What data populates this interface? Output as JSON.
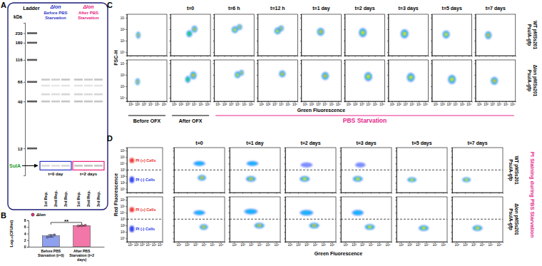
{
  "chart_data": [
    {
      "type": "gel",
      "panel": "A",
      "ladder_title": "Ladder",
      "unit": "kDa",
      "log": "y",
      "ylim": [
        6,
        300
      ],
      "yticks": [
        230,
        180,
        116,
        66,
        40,
        12
      ],
      "ladder": [
        230,
        180,
        116,
        66,
        40,
        12
      ],
      "bands": [
        70,
        60,
        48,
        40,
        7.7
      ],
      "target": {
        "label": "SulA",
        "value": 7.7,
        "color": "#1f9e2c"
      },
      "groups": [
        {
          "strain": "Δlon",
          "title": "Before PBS Starvation",
          "time": "t=0 day",
          "color": "#2b35c8",
          "lanes": [
            {
              "label": "1st Rep.",
              "intensity": [
                0.28,
                0.15,
                0.2,
                0.3,
                0.2
              ]
            },
            {
              "label": "2nd Rep.",
              "intensity": [
                0.25,
                0.12,
                0.18,
                0.28,
                0.18
              ]
            },
            {
              "label": "3rd Rep.",
              "intensity": [
                0.3,
                0.15,
                0.22,
                0.3,
                0.22
              ]
            }
          ]
        },
        {
          "strain": "Δlon",
          "title": "After PBS Starvation",
          "time": "t=2 days",
          "color": "#e8207f",
          "lanes": [
            {
              "label": "1st Rep.",
              "intensity": [
                0.3,
                0.15,
                0.22,
                0.32,
                0.3
              ]
            },
            {
              "label": "2nd Rep.",
              "intensity": [
                0.28,
                0.14,
                0.2,
                0.3,
                0.32
              ]
            },
            {
              "label": "3rd Rep.",
              "intensity": [
                0.3,
                0.15,
                0.22,
                0.3,
                0.3
              ]
            }
          ]
        }
      ]
    },
    {
      "type": "bar",
      "panel": "B",
      "categories": [
        "Before PBS Starvation (t=0)",
        "After PBS Starvation (t=2 days)"
      ],
      "series": [
        {
          "name": "Δlon",
          "color": "#e0307a",
          "values": [
            3.3,
            6.4
          ],
          "errors": [
            0.35,
            0.1
          ],
          "points": [
            [
              2.9,
              3.4,
              3.6
            ],
            [
              6.3,
              6.4,
              6.5
            ]
          ]
        }
      ],
      "colors": [
        "#8fa0ee",
        "#f277a8"
      ],
      "ylabel": "Log₁₀(CFU/ml)",
      "ylim": [
        0,
        8
      ],
      "yticks": [
        0,
        2,
        4,
        6,
        8
      ],
      "significance": "**",
      "legend": "upper left"
    },
    {
      "type": "density_grid",
      "panel": "C",
      "log": true,
      "y_title": "FSC-H",
      "x_title": "Green Fluorescence",
      "xlim": [
        3,
        3000000
      ],
      "ylim": [
        5000,
        20000000
      ],
      "xticks": [
        {
          "value": 10,
          "label": "10¹"
        },
        {
          "value": 100,
          "label": "10²"
        },
        {
          "value": 1000,
          "label": "10³"
        },
        {
          "value": 10000,
          "label": "10⁴"
        },
        {
          "value": 100000,
          "label": "10⁵"
        },
        {
          "value": 1000000,
          "label": "10⁶"
        }
      ],
      "yticks": [
        {
          "value": 10000,
          "label": "10⁴"
        },
        {
          "value": 100000,
          "label": "10⁵"
        },
        {
          "value": 1000000,
          "label": "10⁶"
        },
        {
          "value": 10000000,
          "label": "10⁷"
        }
      ],
      "columns": [
        null,
        "t=0",
        "t=6 h",
        "t=12 h",
        "t=1 day",
        "t=2 days",
        "t=3 days",
        "t=5 days",
        "t=7 days"
      ],
      "column_groups": [
        {
          "label": "Before OFX",
          "columns": 1,
          "color": "#000000"
        },
        {
          "label": "After OFX",
          "columns": 1,
          "color": "#000000"
        },
        {
          "label": "PBS Starvation",
          "columns": 7,
          "color": "#e4268a"
        }
      ],
      "rows": [
        {
          "label": "WT pMSs201 PsulA-gfp",
          "plots": [
            {
              "clusters": [
                {
                  "x": 150,
                  "y": 300000,
                  "sx": 0.35,
                  "sy": 0.3,
                  "level": 5
                }
              ]
            },
            {
              "clusters": [
                {
                  "x": 12000,
                  "y": 1000000,
                  "sx": 0.45,
                  "sy": 0.3,
                  "level": 5
                },
                {
                  "x": 2000,
                  "y": 400000,
                  "sx": 0.45,
                  "sy": 0.3,
                  "level": 3
                }
              ]
            },
            {
              "clusters": [
                {
                  "x": 4000,
                  "y": 900000,
                  "sx": 0.5,
                  "sy": 0.3,
                  "level": 4
                },
                {
                  "x": 20000,
                  "y": 1500000,
                  "sx": 0.4,
                  "sy": 0.25,
                  "level": 5
                }
              ]
            },
            {
              "clusters": [
                {
                  "x": 3000,
                  "y": 700000,
                  "sx": 0.5,
                  "sy": 0.3,
                  "level": 4
                },
                {
                  "x": 10000,
                  "y": 1200000,
                  "sx": 0.4,
                  "sy": 0.25,
                  "level": 5
                }
              ]
            },
            {
              "clusters": [
                {
                  "x": 2500,
                  "y": 600000,
                  "sx": 0.55,
                  "sy": 0.35,
                  "level": 5
                }
              ]
            },
            {
              "clusters": [
                {
                  "x": 1500,
                  "y": 500000,
                  "sx": 0.6,
                  "sy": 0.4,
                  "level": 4
                }
              ]
            },
            {
              "clusters": [
                {
                  "x": 800,
                  "y": 400000,
                  "sx": 0.6,
                  "sy": 0.4,
                  "level": 4
                }
              ]
            },
            {
              "clusters": [
                {
                  "x": 400,
                  "y": 350000,
                  "sx": 0.55,
                  "sy": 0.35,
                  "level": 4
                }
              ]
            },
            {
              "clusters": [
                {
                  "x": 250,
                  "y": 300000,
                  "sx": 0.5,
                  "sy": 0.35,
                  "level": 5
                }
              ]
            }
          ]
        },
        {
          "label": "Δlon pMSs201 PsulA-gfp",
          "plots": [
            {
              "clusters": [
                {
                  "x": 120,
                  "y": 250000,
                  "sx": 0.35,
                  "sy": 0.3,
                  "level": 5
                }
              ]
            },
            {
              "clusters": [
                {
                  "x": 8000,
                  "y": 900000,
                  "sx": 0.5,
                  "sy": 0.35,
                  "level": 5
                },
                {
                  "x": 1200,
                  "y": 400000,
                  "sx": 0.4,
                  "sy": 0.3,
                  "level": 3
                }
              ]
            },
            {
              "clusters": [
                {
                  "x": 10000,
                  "y": 1000000,
                  "sx": 0.45,
                  "sy": 0.3,
                  "level": 4
                },
                {
                  "x": 40000,
                  "y": 1500000,
                  "sx": 0.35,
                  "sy": 0.25,
                  "level": 5
                }
              ]
            },
            {
              "clusters": [
                {
                  "x": 15000,
                  "y": 1200000,
                  "sx": 0.5,
                  "sy": 0.3,
                  "level": 5
                }
              ]
            },
            {
              "clusters": [
                {
                  "x": 12000,
                  "y": 800000,
                  "sx": 0.55,
                  "sy": 0.35,
                  "level": 5
                }
              ]
            },
            {
              "clusters": [
                {
                  "x": 10000,
                  "y": 700000,
                  "sx": 0.6,
                  "sy": 0.4,
                  "level": 4
                }
              ]
            },
            {
              "clusters": [
                {
                  "x": 7000,
                  "y": 600000,
                  "sx": 0.6,
                  "sy": 0.4,
                  "level": 4
                }
              ]
            },
            {
              "clusters": [
                {
                  "x": 3000,
                  "y": 400000,
                  "sx": 0.6,
                  "sy": 0.4,
                  "level": 4
                }
              ]
            },
            {
              "clusters": [
                {
                  "x": 2000,
                  "y": 300000,
                  "sx": 0.55,
                  "sy": 0.35,
                  "level": 5
                }
              ]
            }
          ]
        }
      ]
    },
    {
      "type": "density_grid",
      "panel": "D",
      "log": true,
      "y_title": "Red Fluorescence",
      "x_title": "Green Fluorescence",
      "side_title": "PI Staining during PBS Starvation",
      "color": "#e4268a",
      "threshold": 1000,
      "xlim": [
        3,
        3000000
      ],
      "ylim": [
        0.3,
        3000000
      ],
      "xticks": [
        {
          "value": 10,
          "label": "10¹"
        },
        {
          "value": 100,
          "label": "10²"
        },
        {
          "value": 1000,
          "label": "10³"
        },
        {
          "value": 10000,
          "label": "10⁴"
        },
        {
          "value": 100000,
          "label": "10⁵"
        },
        {
          "value": 1000000,
          "label": "10⁶"
        }
      ],
      "yticks": [
        {
          "value": 1,
          "label": "10⁰"
        },
        {
          "value": 10,
          "label": "10¹"
        },
        {
          "value": 100,
          "label": "10²"
        },
        {
          "value": 1000,
          "label": "10³"
        },
        {
          "value": 10000,
          "label": "10⁴"
        },
        {
          "value": 100000,
          "label": "10⁵"
        },
        {
          "value": 1000000,
          "label": "10⁶"
        }
      ],
      "columns": [
        "t=0",
        "t=1 day",
        "t=2 days",
        "t=3 days",
        "t=5 days",
        "t=7 days"
      ],
      "rows": [
        {
          "label": "WT pMSs201 PsulA-gfp",
          "reference": {
            "clusters": [
              {
                "x": 20,
                "y": 30000,
                "sx": 0.4,
                "sy": 0.4,
                "level": 1,
                "color": "#ee2222",
                "label": "PI (+) Cells"
              },
              {
                "x": 20,
                "y": 30,
                "sx": 0.4,
                "sy": 0.5,
                "level": 1,
                "color": "#2233ee",
                "label": "PI (-) Cells"
              }
            ]
          },
          "plots": [
            {
              "clusters": [
                {
                  "x": 6000,
                  "y": 60,
                  "sx": 0.5,
                  "sy": 0.45,
                  "level": 5
                },
                {
                  "x": 3000,
                  "y": 10000,
                  "sx": 0.7,
                  "sy": 0.4,
                  "level": 2
                }
              ]
            },
            {
              "clusters": [
                {
                  "x": 1000,
                  "y": 40,
                  "sx": 0.6,
                  "sy": 0.45,
                  "level": 5
                },
                {
                  "x": 1500,
                  "y": 10000,
                  "sx": 0.7,
                  "sy": 0.4,
                  "level": 2
                }
              ]
            },
            {
              "clusters": [
                {
                  "x": 600,
                  "y": 40,
                  "sx": 0.6,
                  "sy": 0.45,
                  "level": 4
                },
                {
                  "x": 1000,
                  "y": 6000,
                  "sx": 0.7,
                  "sy": 0.4,
                  "level": 1
                }
              ]
            },
            {
              "clusters": [
                {
                  "x": 300,
                  "y": 40,
                  "sx": 0.6,
                  "sy": 0.45,
                  "level": 4
                },
                {
                  "x": 600,
                  "y": 6000,
                  "sx": 0.6,
                  "sy": 0.4,
                  "level": 1
                }
              ]
            },
            {
              "clusters": [
                {
                  "x": 200,
                  "y": 30,
                  "sx": 0.55,
                  "sy": 0.4,
                  "level": 4
                }
              ]
            },
            {
              "clusters": [
                {
                  "x": 150,
                  "y": 30,
                  "sx": 0.5,
                  "sy": 0.4,
                  "level": 4
                }
              ]
            }
          ]
        },
        {
          "label": "Δlon pMSs201 PsulA-gfp",
          "reference": {
            "clusters": [
              {
                "x": 20,
                "y": 30000,
                "sx": 0.4,
                "sy": 0.4,
                "level": 1,
                "color": "#ee2222",
                "label": "PI (+) Cells"
              },
              {
                "x": 20,
                "y": 30,
                "sx": 0.4,
                "sy": 0.5,
                "level": 1,
                "color": "#2233ee",
                "label": "PI (-) Cells"
              }
            ]
          },
          "plots": [
            {
              "clusters": [
                {
                  "x": 10000,
                  "y": 60,
                  "sx": 0.5,
                  "sy": 0.45,
                  "level": 5
                },
                {
                  "x": 3000,
                  "y": 10000,
                  "sx": 0.7,
                  "sy": 0.4,
                  "level": 2
                }
              ]
            },
            {
              "clusters": [
                {
                  "x": 10000,
                  "y": 100,
                  "sx": 0.6,
                  "sy": 0.45,
                  "level": 5
                },
                {
                  "x": 1000,
                  "y": 15000,
                  "sx": 0.8,
                  "sy": 0.45,
                  "level": 2
                }
              ]
            },
            {
              "clusters": [
                {
                  "x": 8000,
                  "y": 100,
                  "sx": 0.6,
                  "sy": 0.45,
                  "level": 5
                },
                {
                  "x": 1000,
                  "y": 10000,
                  "sx": 0.8,
                  "sy": 0.45,
                  "level": 2
                }
              ]
            },
            {
              "clusters": [
                {
                  "x": 8000,
                  "y": 60,
                  "sx": 0.6,
                  "sy": 0.45,
                  "level": 4
                },
                {
                  "x": 300,
                  "y": 10000,
                  "sx": 0.7,
                  "sy": 0.45,
                  "level": 2
                }
              ]
            },
            {
              "clusters": [
                {
                  "x": 5000,
                  "y": 40,
                  "sx": 0.6,
                  "sy": 0.45,
                  "level": 4
                }
              ]
            },
            {
              "clusters": [
                {
                  "x": 3000,
                  "y": 40,
                  "sx": 0.6,
                  "sy": 0.45,
                  "level": 4
                }
              ]
            }
          ]
        }
      ]
    }
  ]
}
